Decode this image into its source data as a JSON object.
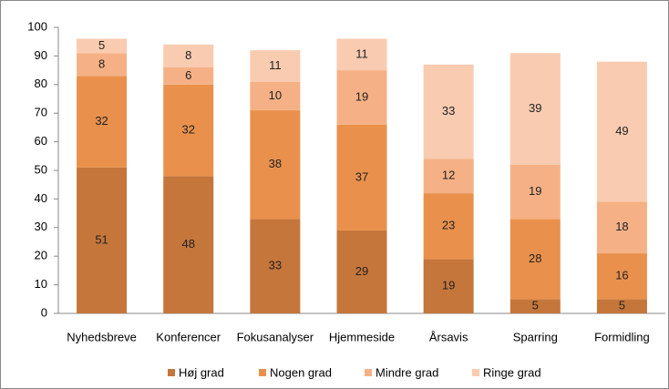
{
  "chart_data": {
    "type": "stacked_bar",
    "categories": [
      "Nyhedsbreve",
      "Konferencer",
      "Fokusanalyser",
      "Hjemmeside",
      "Årsavis",
      "Sparring",
      "Formidling"
    ],
    "series": [
      {
        "name": "Høj grad",
        "color": "#c5763b",
        "values": [
          51,
          48,
          33,
          29,
          19,
          5,
          5
        ]
      },
      {
        "name": "Nogen grad",
        "color": "#e9914c",
        "values": [
          32,
          32,
          38,
          37,
          23,
          28,
          16
        ]
      },
      {
        "name": "Mindre grad",
        "color": "#f5b185",
        "values": [
          8,
          6,
          10,
          19,
          12,
          19,
          18
        ]
      },
      {
        "name": "Ringe grad",
        "color": "#f9cbb0",
        "values": [
          5,
          8,
          11,
          11,
          33,
          39,
          49
        ]
      }
    ],
    "ylim": [
      0,
      100
    ],
    "yticks": [
      0,
      10,
      20,
      30,
      40,
      50,
      60,
      70,
      80,
      90,
      100
    ],
    "legend": "bottom"
  }
}
